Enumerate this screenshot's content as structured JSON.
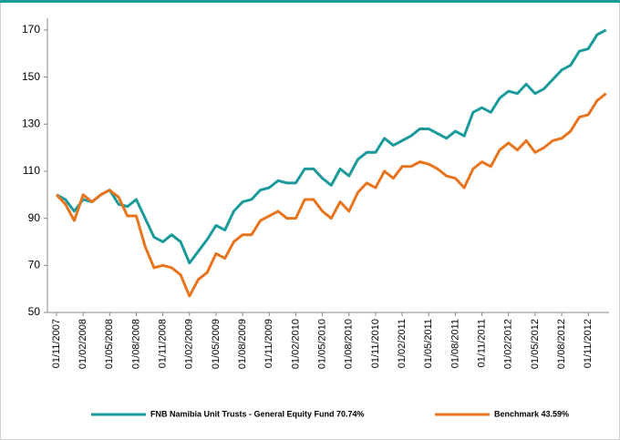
{
  "chart_data": {
    "type": "line",
    "categories": [
      "01/11/2007",
      null,
      null,
      "01/02/2008",
      null,
      null,
      "01/05/2008",
      null,
      null,
      "01/08/2008",
      null,
      null,
      "01/11/2008",
      null,
      null,
      "01/02/2009",
      null,
      null,
      "01/05/2009",
      null,
      null,
      "01/08/2009",
      null,
      null,
      "01/11/2009",
      null,
      null,
      "01/02/2010",
      null,
      null,
      "01/05/2010",
      null,
      null,
      "01/08/2010",
      null,
      null,
      "01/11/2010",
      null,
      null,
      "01/02/2011",
      null,
      null,
      "01/05/2011",
      null,
      null,
      "01/08/2011",
      null,
      null,
      "01/11/2011",
      null,
      null,
      "01/02/2012",
      null,
      null,
      "01/05/2012",
      null,
      null,
      "01/08/2012",
      null,
      null,
      "01/11/2012",
      null,
      null
    ],
    "series": [
      {
        "name": "FNB Namibia Unit Trusts - General Equity Fund 70.74%",
        "color": "#1b9a9c",
        "values": [
          100,
          98,
          93,
          98,
          97,
          100,
          102,
          96,
          95,
          98,
          90,
          82,
          80,
          83,
          80,
          71,
          76,
          81,
          87,
          85,
          93,
          97,
          98,
          102,
          103,
          106,
          105,
          105,
          111,
          111,
          107,
          104,
          111,
          108,
          115,
          118,
          118,
          124,
          121,
          123,
          125,
          128,
          128,
          126,
          124,
          127,
          125,
          135,
          137,
          135,
          141,
          144,
          143,
          147,
          143,
          145,
          149,
          153,
          155,
          161,
          162,
          168,
          170
        ]
      },
      {
        "name": "Benchmark 43.59%",
        "color": "#e8741e",
        "values": [
          100,
          96,
          89,
          100,
          97,
          100,
          102,
          99,
          91,
          91,
          78,
          69,
          70,
          69,
          66,
          57,
          64,
          67,
          75,
          73,
          80,
          83,
          83,
          89,
          91,
          93,
          90,
          90,
          98,
          98,
          93,
          90,
          97,
          93,
          101,
          105,
          103,
          110,
          107,
          112,
          112,
          114,
          113,
          111,
          108,
          107,
          103,
          111,
          114,
          112,
          119,
          122,
          119,
          123,
          118,
          120,
          123,
          124,
          127,
          133,
          134,
          140,
          143
        ]
      }
    ],
    "ylim": [
      50,
      175
    ],
    "yticks": [
      50,
      70,
      90,
      110,
      130,
      150,
      170
    ]
  }
}
